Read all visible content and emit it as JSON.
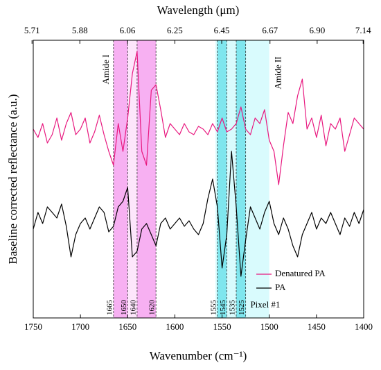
{
  "chart_data": {
    "type": "line",
    "title": "Wavelength (μm)",
    "xlabel": "Wavenumber (cm⁻¹)",
    "ylabel": "Baseline corrected reflectance (a.u.)",
    "xlim": [
      1750,
      1400
    ],
    "xticks": [
      1750,
      1700,
      1650,
      1600,
      1550,
      1500,
      1450,
      1400
    ],
    "x2ticks": [
      5.71,
      5.88,
      6.06,
      6.25,
      6.45,
      6.67,
      {
        "value": 6.9,
        "label": "6.90"
      },
      7.14
    ],
    "ylim": [
      0,
      100
    ],
    "legend": "lower right",
    "regions": [
      {
        "label": "Amide I",
        "from": 1665,
        "to": 1620,
        "color": "#fde6fb"
      },
      {
        "label": "Amide II",
        "from": 1557,
        "to": 1500,
        "color": "#d9fbfd"
      }
    ],
    "bands": [
      {
        "from": 1665,
        "to": 1650,
        "color": "#f7b0f2"
      },
      {
        "from": 1640,
        "to": 1620,
        "color": "#f7b0f2"
      },
      {
        "from": 1555,
        "to": 1545,
        "color": "#7fe6ee"
      },
      {
        "from": 1535,
        "to": 1525,
        "color": "#7fe6ee"
      }
    ],
    "markers": [
      1665,
      1650,
      1640,
      1620,
      1555,
      1545,
      1535,
      1525
    ],
    "annotation": "Pixel #1",
    "x": [
      1750,
      1745,
      1740,
      1735,
      1730,
      1725,
      1720,
      1715,
      1710,
      1705,
      1700,
      1695,
      1690,
      1685,
      1680,
      1675,
      1670,
      1665,
      1660,
      1655,
      1650,
      1645,
      1640,
      1635,
      1630,
      1625,
      1620,
      1615,
      1610,
      1605,
      1600,
      1595,
      1590,
      1585,
      1580,
      1575,
      1570,
      1565,
      1560,
      1555,
      1550,
      1545,
      1540,
      1535,
      1530,
      1525,
      1520,
      1515,
      1510,
      1505,
      1500,
      1495,
      1490,
      1485,
      1480,
      1475,
      1470,
      1465,
      1460,
      1455,
      1450,
      1445,
      1440,
      1435,
      1430,
      1425,
      1420,
      1415,
      1410,
      1405,
      1400
    ],
    "series": [
      {
        "name": "Denatured PA",
        "color": "#e8187f",
        "values": [
          68,
          65,
          70,
          63,
          66,
          72,
          64,
          70,
          74,
          66,
          68,
          72,
          63,
          67,
          73,
          66,
          60,
          55,
          70,
          60,
          72,
          88,
          96,
          60,
          55,
          82,
          84,
          75,
          65,
          70,
          68,
          66,
          70,
          67,
          66,
          69,
          68,
          66,
          70,
          67,
          72,
          67,
          68,
          70,
          76,
          68,
          66,
          72,
          70,
          75,
          64,
          60,
          48,
          62,
          74,
          70,
          80,
          86,
          68,
          72,
          65,
          73,
          62,
          70,
          68,
          72,
          60,
          66,
          72,
          70,
          68
        ]
      },
      {
        "name": "PA",
        "color": "#000000",
        "values": [
          32,
          38,
          34,
          40,
          38,
          36,
          41,
          33,
          22,
          30,
          34,
          36,
          32,
          36,
          40,
          38,
          31,
          33,
          40,
          42,
          47,
          22,
          24,
          32,
          34,
          30,
          26,
          34,
          36,
          32,
          34,
          36,
          33,
          35,
          32,
          30,
          34,
          43,
          50,
          40,
          18,
          30,
          60,
          40,
          15,
          28,
          40,
          36,
          32,
          38,
          42,
          34,
          30,
          36,
          32,
          26,
          22,
          30,
          34,
          38,
          32,
          36,
          34,
          38,
          34,
          30,
          36,
          33,
          38,
          34,
          39
        ]
      }
    ]
  }
}
